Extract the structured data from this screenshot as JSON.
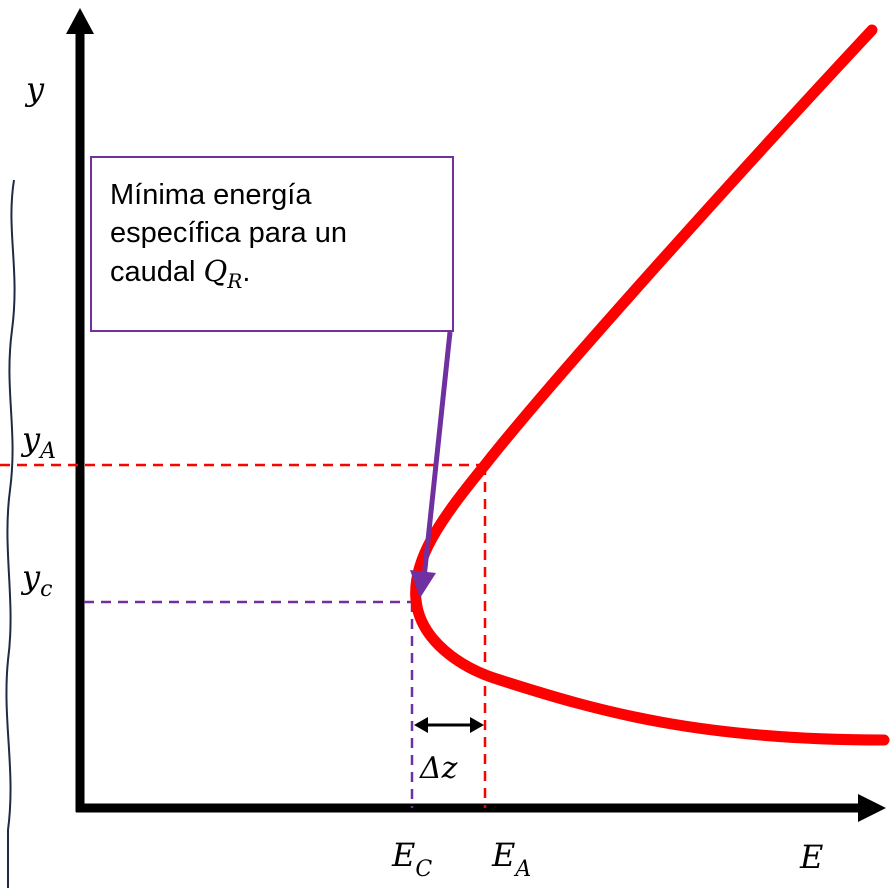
{
  "labels": {
    "y_axis": "y",
    "x_axis": "E",
    "y_A": {
      "base": "y",
      "sub": "A"
    },
    "y_c": {
      "base": "y",
      "sub": "c"
    },
    "E_C": {
      "base": "E",
      "sub": "C"
    },
    "E_A": {
      "base": "E",
      "sub": "A"
    },
    "delta_z": "Δz"
  },
  "callout": {
    "line1": "Mínima energía",
    "line2": "específica para un",
    "line3_prefix": "caudal ",
    "var_base": "Q",
    "var_sub": "R",
    "line3_suffix": "."
  },
  "colors": {
    "curve": "#ff0000",
    "guide_A": "#ff0000",
    "guide_c": "#7030a0",
    "callout_border": "#7030a0",
    "axes": "#000000",
    "wavy_border": "#1f2a44"
  }
}
